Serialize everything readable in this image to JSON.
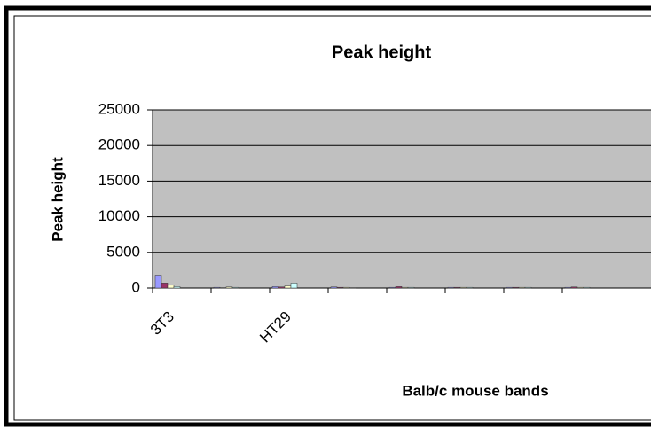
{
  "chart_data": {
    "type": "bar",
    "title": "Peak height",
    "y_label": "Peak height",
    "x_label": "Balb/c mouse bands",
    "categories": [
      "3T3",
      null,
      "HT29",
      null,
      null,
      null,
      null,
      null
    ],
    "series": [
      {
        "color": "#9999ff",
        "values": [
          1800,
          100,
          200,
          150,
          100,
          100,
          100,
          100
        ]
      },
      {
        "color": "#993366",
        "values": [
          700,
          50,
          150,
          100,
          200,
          100,
          100,
          150
        ]
      },
      {
        "color": "#ffffcc",
        "values": [
          400,
          150,
          300,
          100,
          100,
          100,
          100,
          100
        ]
      },
      {
        "color": "#ccffff",
        "values": [
          200,
          100,
          700,
          50,
          100,
          100,
          100,
          100
        ]
      }
    ],
    "ylim": [
      0,
      25000
    ],
    "yticks": [
      0,
      5000,
      10000,
      15000,
      20000,
      25000
    ],
    "grid": true
  }
}
